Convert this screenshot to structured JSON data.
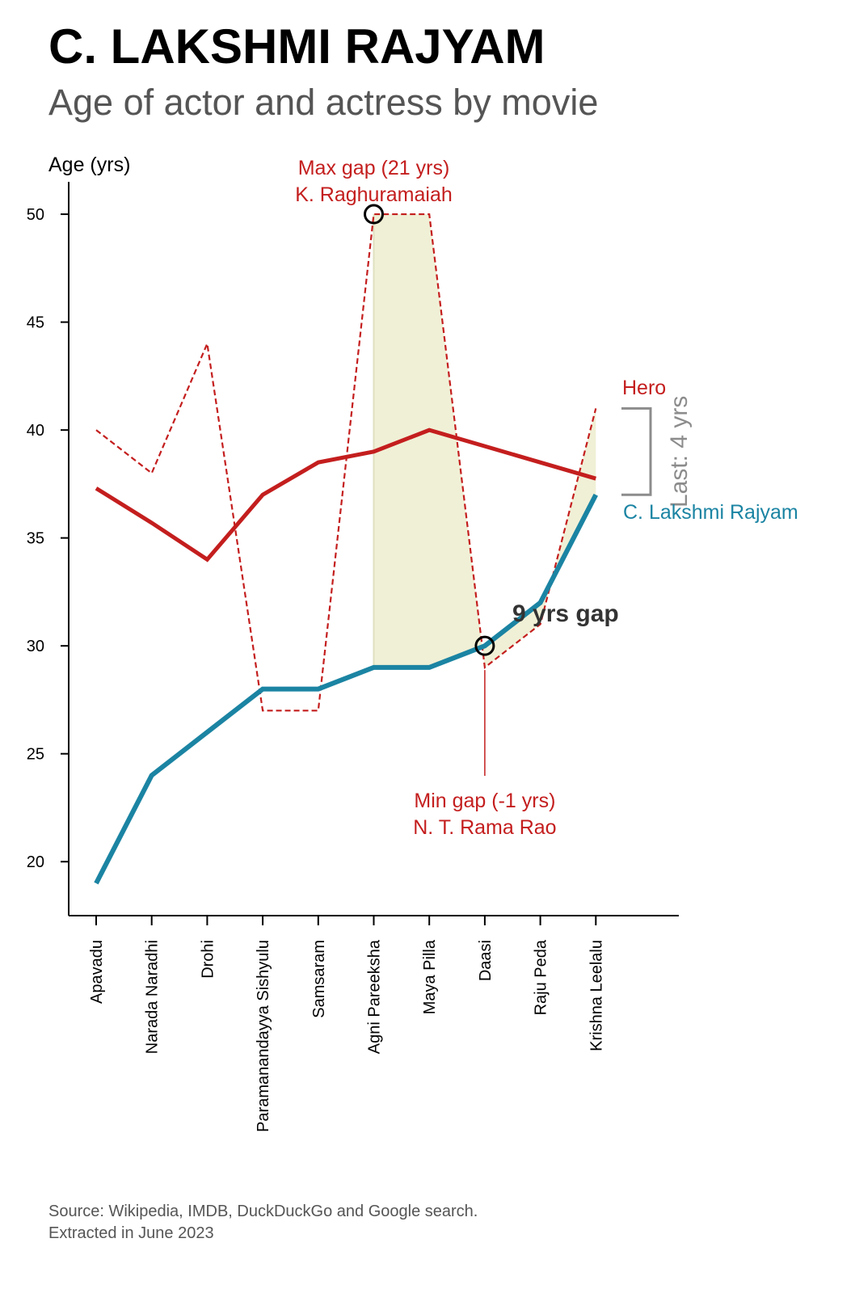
{
  "title": "C. LAKSHMI RAJYAM",
  "subtitle": "Age of actor and actress by movie",
  "source_lines": [
    "Source: Wikipedia, IMDB, DuckDuckGo and Google search.",
    "Extracted in June 2023"
  ],
  "colors": {
    "hero": "#c41e1e",
    "actress": "#1b84a3",
    "gap_fill": "#f0f0d6",
    "last_gap": "#8c8c8c",
    "axis": "#000000",
    "gap_label": "#333333"
  },
  "chart_data": {
    "type": "line",
    "ylabel": "Age (yrs)",
    "ylim": [
      17.5,
      51.5
    ],
    "yticks": [
      20,
      25,
      30,
      35,
      40,
      45,
      50
    ],
    "categories": [
      "Apavadu",
      "Narada Naradhi",
      "Drohi",
      "Paramanandayya Sishyulu",
      "Samsaram",
      "Agni Pareeksha",
      "Maya Pilla",
      "Daasi",
      "Raju Peda",
      "Krishna Leelalu"
    ],
    "series": [
      {
        "key": "hero_raw",
        "style": "dashed",
        "values": [
          40,
          38,
          44,
          27,
          27,
          50,
          50,
          29,
          31,
          41
        ]
      },
      {
        "key": "hero_trend",
        "name": "Hero",
        "style": "solid",
        "values": [
          37.3,
          35.7,
          34.0,
          37.0,
          38.5,
          39.0,
          40.0,
          39.25,
          38.5,
          37.75
        ]
      },
      {
        "key": "actress",
        "name": "C. Lakshmi Rajyam",
        "style": "solid",
        "values": [
          19,
          24,
          26,
          28,
          28,
          29,
          29,
          30,
          32,
          37
        ]
      }
    ],
    "shaded_gap": {
      "from_index": 5,
      "to_index": 9
    },
    "annotations": {
      "max_gap": {
        "lines": [
          "Max gap (21 yrs)",
          "K. Raghuramaiah"
        ],
        "index": 5,
        "value": 50
      },
      "min_gap": {
        "lines": [
          "Min gap (-1 yrs)",
          "N. T. Rama Rao"
        ],
        "index": 7,
        "value": 30
      },
      "avg_gap": {
        "text": "9 yrs gap",
        "index": 7.5,
        "value": 31.5
      },
      "last_gap": {
        "text": "Last: 4 yrs",
        "from_value": 37,
        "to_value": 41
      }
    }
  }
}
